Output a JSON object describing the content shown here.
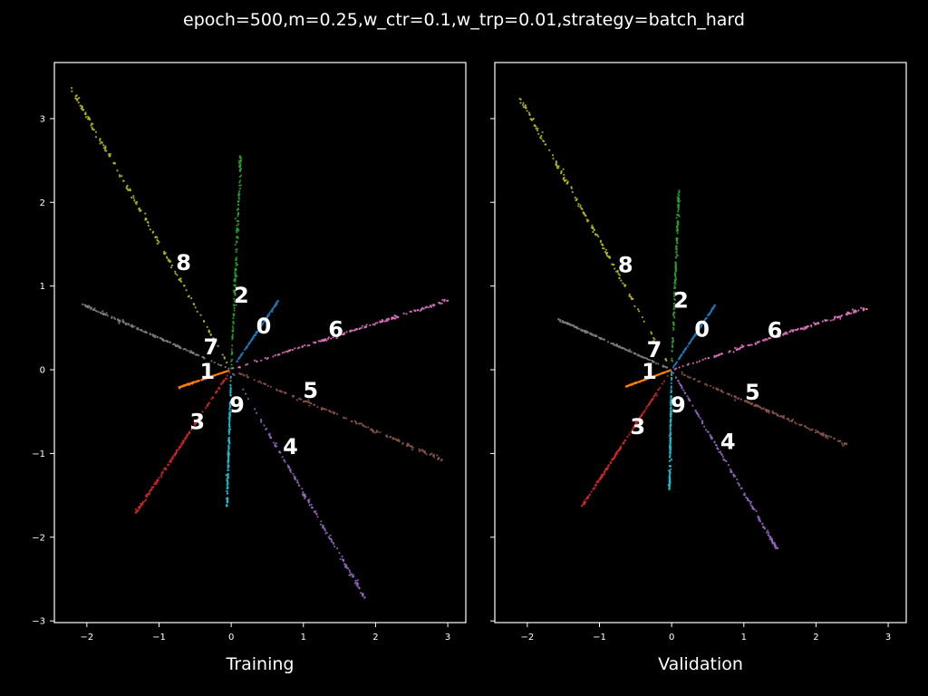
{
  "figure": {
    "suptitle": "epoch=500,m=0.25,w_ctr=0.1,w_trp=0.01,strategy=batch_hard",
    "background": "#000000",
    "foreground": "#ffffff"
  },
  "chart_data": [
    {
      "type": "scatter",
      "title": "",
      "xlabel": "Training",
      "ylabel": "",
      "xlim": [
        -2.45,
        3.25
      ],
      "ylim": [
        -3.02,
        3.67
      ],
      "xticks": [
        -2,
        -1,
        0,
        1,
        2,
        3
      ],
      "yticks": [
        -3,
        -2,
        -1,
        0,
        1,
        2,
        3
      ],
      "show_ytick_labels": true,
      "grid": false,
      "series": [
        {
          "name": "0",
          "color": "#1f77b4",
          "end": [
            0.65,
            0.82
          ],
          "label_pos": [
            0.45,
            0.52
          ]
        },
        {
          "name": "1",
          "color": "#ff7f0e",
          "end": [
            -0.72,
            -0.21
          ],
          "label_pos": [
            -0.33,
            -0.02
          ]
        },
        {
          "name": "2",
          "color": "#2ca02c",
          "end": [
            0.13,
            2.55
          ],
          "label_pos": [
            0.14,
            0.89
          ]
        },
        {
          "name": "3",
          "color": "#d62728",
          "end": [
            -1.32,
            -1.71
          ],
          "label_pos": [
            -0.47,
            -0.62
          ]
        },
        {
          "name": "4",
          "color": "#9467bd",
          "end": [
            1.85,
            -2.72
          ],
          "label_pos": [
            0.82,
            -0.92
          ]
        },
        {
          "name": "5",
          "color": "#8c564b",
          "end": [
            2.92,
            -1.07
          ],
          "label_pos": [
            1.1,
            -0.25
          ]
        },
        {
          "name": "6",
          "color": "#e377c2",
          "end": [
            3.0,
            0.83
          ],
          "label_pos": [
            1.45,
            0.48
          ]
        },
        {
          "name": "7",
          "color": "#7f7f7f",
          "end": [
            -2.06,
            0.78
          ],
          "label_pos": [
            -0.28,
            0.27
          ]
        },
        {
          "name": "8",
          "color": "#bcbd22",
          "end": [
            -2.22,
            3.36
          ],
          "label_pos": [
            -0.66,
            1.28
          ]
        },
        {
          "name": "9",
          "color": "#17becf",
          "end": [
            -0.06,
            -1.63
          ],
          "label_pos": [
            0.08,
            -0.42
          ]
        }
      ]
    },
    {
      "type": "scatter",
      "title": "",
      "xlabel": "Validation",
      "ylabel": "",
      "xlim": [
        -2.45,
        3.25
      ],
      "ylim": [
        -3.02,
        3.67
      ],
      "xticks": [
        -2,
        -1,
        0,
        1,
        2,
        3
      ],
      "yticks": [
        -3,
        -2,
        -1,
        0,
        1,
        2,
        3
      ],
      "show_ytick_labels": false,
      "grid": false,
      "series": [
        {
          "name": "0",
          "color": "#1f77b4",
          "end": [
            0.6,
            0.77
          ],
          "label_pos": [
            0.42,
            0.48
          ]
        },
        {
          "name": "1",
          "color": "#ff7f0e",
          "end": [
            -0.63,
            -0.2
          ],
          "label_pos": [
            -0.31,
            -0.02
          ]
        },
        {
          "name": "2",
          "color": "#2ca02c",
          "end": [
            0.1,
            2.14
          ],
          "label_pos": [
            0.13,
            0.83
          ]
        },
        {
          "name": "3",
          "color": "#d62728",
          "end": [
            -1.24,
            -1.63
          ],
          "label_pos": [
            -0.47,
            -0.68
          ]
        },
        {
          "name": "4",
          "color": "#9467bd",
          "end": [
            1.46,
            -2.14
          ],
          "label_pos": [
            0.78,
            -0.86
          ]
        },
        {
          "name": "5",
          "color": "#8c564b",
          "end": [
            2.42,
            -0.89
          ],
          "label_pos": [
            1.12,
            -0.27
          ]
        },
        {
          "name": "6",
          "color": "#e377c2",
          "end": [
            2.7,
            0.74
          ],
          "label_pos": [
            1.43,
            0.47
          ]
        },
        {
          "name": "7",
          "color": "#7f7f7f",
          "end": [
            -1.57,
            0.6
          ],
          "label_pos": [
            -0.24,
            0.24
          ]
        },
        {
          "name": "8",
          "color": "#bcbd22",
          "end": [
            -2.1,
            3.24
          ],
          "label_pos": [
            -0.64,
            1.25
          ]
        },
        {
          "name": "9",
          "color": "#17becf",
          "end": [
            -0.03,
            -1.43
          ],
          "label_pos": [
            0.09,
            -0.42
          ]
        }
      ]
    }
  ]
}
